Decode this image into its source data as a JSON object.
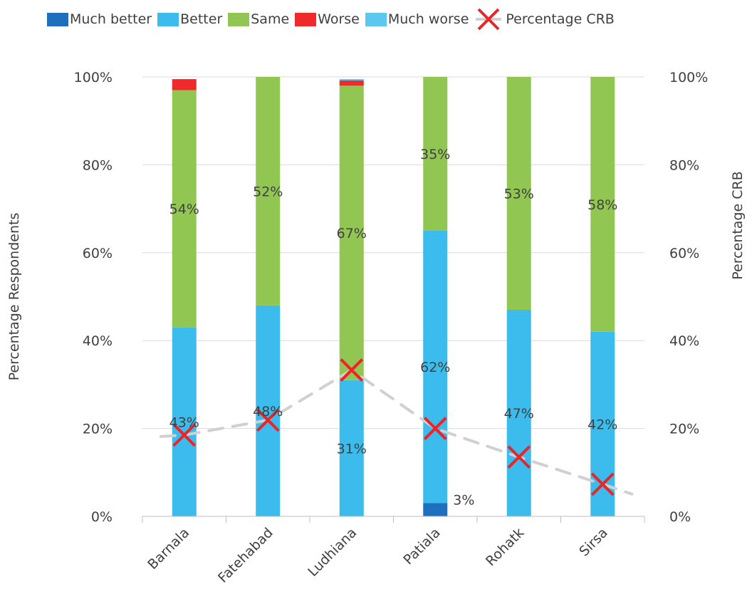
{
  "chart_data": {
    "type": "bar",
    "stacked": true,
    "categories": [
      "Barnala",
      "Fatehabad",
      "Ludhiana",
      "Patiala",
      "Rohatk",
      "Sirsa"
    ],
    "series": [
      {
        "name": "Much better",
        "color": "#1f6fbf",
        "values": [
          0,
          0,
          0,
          3,
          0,
          0
        ]
      },
      {
        "name": "Better",
        "color": "#3bbcec",
        "values": [
          43,
          48,
          31,
          62,
          47,
          42
        ]
      },
      {
        "name": "Same",
        "color": "#92c653",
        "values": [
          54,
          52,
          67,
          35,
          53,
          58
        ]
      },
      {
        "name": "Worse",
        "color": "#f02a2a",
        "values": [
          2.5,
          0,
          1.2,
          0,
          0,
          0
        ]
      },
      {
        "name": "Much worse",
        "color": "#5bc8f0",
        "values": [
          0,
          0,
          0.3,
          0,
          0,
          0
        ]
      }
    ],
    "data_labels": [
      {
        "category": "Barnala",
        "series": "Better",
        "text": "43%"
      },
      {
        "category": "Barnala",
        "series": "Same",
        "text": "54%"
      },
      {
        "category": "Fatehabad",
        "series": "Better",
        "text": "48%"
      },
      {
        "category": "Fatehabad",
        "series": "Same",
        "text": "52%"
      },
      {
        "category": "Ludhiana",
        "series": "Better",
        "text": "31%"
      },
      {
        "category": "Ludhiana",
        "series": "Same",
        "text": "67%"
      },
      {
        "category": "Patiala",
        "series": "Much better",
        "text": "3%"
      },
      {
        "category": "Patiala",
        "series": "Better",
        "text": "62%"
      },
      {
        "category": "Patiala",
        "series": "Same",
        "text": "35%"
      },
      {
        "category": "Rohatk",
        "series": "Better",
        "text": "47%"
      },
      {
        "category": "Rohatk",
        "series": "Same",
        "text": "53%"
      },
      {
        "category": "Sirsa",
        "series": "Better",
        "text": "42%"
      },
      {
        "category": "Sirsa",
        "series": "Same",
        "text": "58%"
      }
    ],
    "line_series": {
      "name": "Percentage CRB",
      "axis": "right",
      "line_color": "#d0d0d0",
      "marker_color": "#e8262a",
      "values": [
        18.5,
        21.9,
        33.3,
        20.0,
        13.5,
        7.3
      ]
    },
    "ylabel": "Percentage Respondents",
    "y2label": "Percentage CRB",
    "ylim": [
      0,
      100
    ],
    "y2lim": [
      0,
      100
    ],
    "yticks": [
      "0%",
      "20%",
      "40%",
      "60%",
      "80%",
      "100%"
    ],
    "y2ticks": [
      "0%",
      "20%",
      "40%",
      "60%",
      "80%",
      "100%"
    ],
    "grid": true,
    "legend_position": "top"
  }
}
